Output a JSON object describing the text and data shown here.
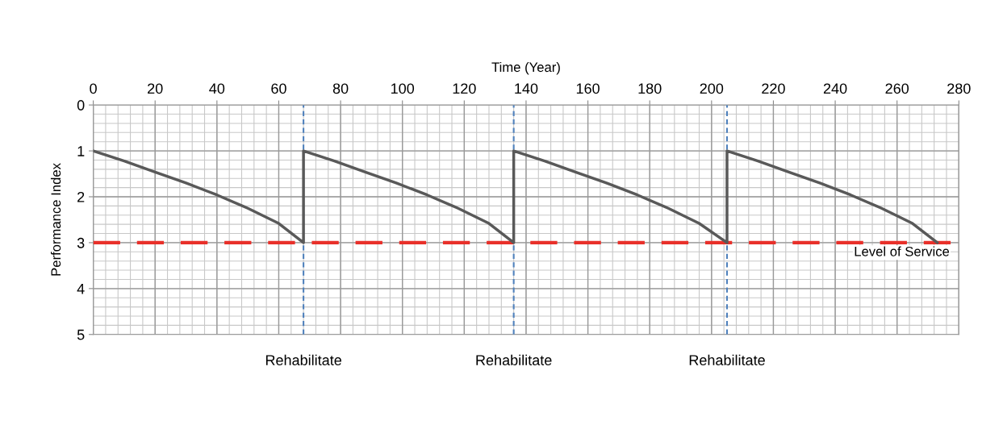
{
  "chart_data": {
    "type": "line",
    "xlabel": "Time (Year)",
    "ylabel": "Performance Index",
    "x": [
      0,
      10,
      20,
      30,
      40,
      50,
      60,
      68,
      68,
      78,
      88,
      98,
      108,
      118,
      128,
      136,
      136,
      146,
      156,
      166,
      176,
      186,
      196,
      205,
      205,
      215,
      225,
      235,
      245,
      255,
      265,
      273
    ],
    "series": [
      {
        "color": "#595959",
        "values": [
          1,
          1.22,
          1.46,
          1.7,
          1.96,
          2.25,
          2.58,
          3,
          1,
          1.22,
          1.46,
          1.7,
          1.96,
          2.25,
          2.58,
          3,
          1,
          1.22,
          1.46,
          1.7,
          1.96,
          2.25,
          2.58,
          3,
          1,
          1.22,
          1.46,
          1.7,
          1.96,
          2.25,
          2.58,
          3
        ]
      }
    ],
    "xlim": [
      0,
      280
    ],
    "xticks": [
      0,
      20,
      40,
      60,
      80,
      100,
      120,
      140,
      160,
      180,
      200,
      220,
      240,
      260,
      280
    ],
    "ylim": [
      5,
      0
    ],
    "yticks": [
      0,
      1,
      2,
      3,
      4,
      5
    ],
    "grid": true,
    "marker": "none",
    "line_style": "solid",
    "ref_lines": [
      {
        "axis": "y",
        "value": 3,
        "label": "Level of Service",
        "color": "#e8302a",
        "line_style": "dashed"
      },
      {
        "axis": "x",
        "value": 68,
        "label": "Rehabilitate",
        "color": "#4f81bd",
        "line_style": "dotted"
      },
      {
        "axis": "x",
        "value": 136,
        "label": "Rehabilitate",
        "color": "#4f81bd",
        "line_style": "dotted"
      },
      {
        "axis": "x",
        "value": 205,
        "label": "Rehabilitate",
        "color": "#4f81bd",
        "line_style": "dotted"
      }
    ]
  }
}
